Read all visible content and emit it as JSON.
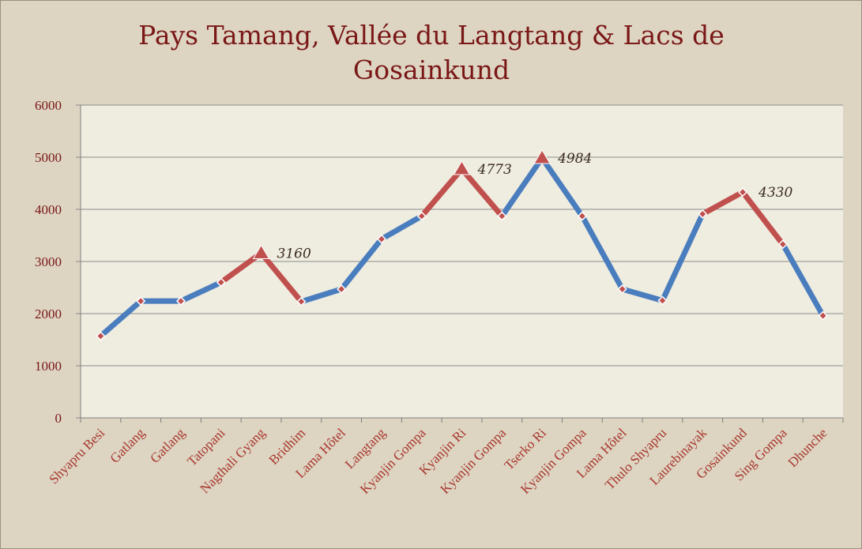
{
  "chart_data": {
    "type": "line",
    "title": "Pays Tamang, Vallée du Langtang & Lacs de Gosainkund",
    "xlabel": "",
    "ylabel": "",
    "ylim": [
      0,
      6000
    ],
    "yticks": [
      0,
      1000,
      2000,
      3000,
      4000,
      5000,
      6000
    ],
    "grid": true,
    "legend": "none",
    "categories": [
      "Shyapru Besi",
      "Gatlang",
      "Gatlang",
      "Tatopani",
      "Nagthali Gyang",
      "Bridhim",
      "Lama Hôtel",
      "Langtang",
      "Kyanjin Gompa",
      "Kyanjin Ri",
      "Kyanjin Gompa",
      "Tserko Ri",
      "Kyanjin Gompa",
      "Lama Hôtel",
      "Thulo Shyapru",
      "Laurebinayak",
      "Gosainkund",
      "Sing Gompa",
      "Dhunche"
    ],
    "series": [
      {
        "values": [
          1570,
          2240,
          2240,
          2600,
          3160,
          2230,
          2470,
          3430,
          3870,
          4773,
          3870,
          4984,
          3870,
          2470,
          2250,
          3910,
          4330,
          3330,
          1960
        ]
      }
    ],
    "segment_colors": [
      "blue",
      "blue",
      "blue",
      "red",
      "red",
      "blue",
      "blue",
      "blue",
      "red",
      "red",
      "blue",
      "blue",
      "blue",
      "blue",
      "blue",
      "red",
      "red",
      "blue"
    ],
    "peaks": [
      4,
      9,
      11
    ],
    "data_labels": [
      {
        "index": 4,
        "text": "3160"
      },
      {
        "index": 9,
        "text": "4773"
      },
      {
        "index": 11,
        "text": "4984"
      },
      {
        "index": 16,
        "text": "4330"
      }
    ],
    "colors": {
      "blue": "#4a7dbd",
      "red": "#c0504d",
      "plot_bg": "#efece0",
      "grid": "#8c8c8c",
      "marker": "#c0504d"
    }
  }
}
